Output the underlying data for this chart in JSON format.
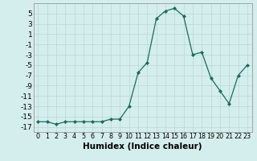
{
  "x": [
    0,
    1,
    2,
    3,
    4,
    5,
    6,
    7,
    8,
    9,
    10,
    11,
    12,
    13,
    14,
    15,
    16,
    17,
    18,
    19,
    20,
    21,
    22,
    23
  ],
  "y": [
    -16,
    -16,
    -16.5,
    -16,
    -16,
    -16,
    -16,
    -16,
    -15.5,
    -15.5,
    -13,
    -6.5,
    -4.5,
    4,
    5.5,
    6,
    4.5,
    -3,
    -2.5,
    -7.5,
    -10,
    -12.5,
    -7,
    -5
  ],
  "line_color": "#1a6b5a",
  "marker": "D",
  "marker_size": 2.0,
  "bg_color": "#d4eeed",
  "grid_color": "#b8d8d4",
  "xlabel": "Humidex (Indice chaleur)",
  "xlim": [
    -0.5,
    23.5
  ],
  "ylim": [
    -18,
    7
  ],
  "yticks": [
    5,
    3,
    1,
    -1,
    -3,
    -5,
    -7,
    -9,
    -11,
    -13,
    -15,
    -17
  ],
  "xtick_labels": [
    "0",
    "1",
    "2",
    "3",
    "4",
    "5",
    "6",
    "7",
    "8",
    "9",
    "10",
    "11",
    "12",
    "13",
    "14",
    "15",
    "16",
    "17",
    "18",
    "19",
    "20",
    "21",
    "22",
    "23"
  ],
  "xlabel_fontsize": 7.5,
  "ytick_fontsize": 6.5,
  "xtick_fontsize": 5.8
}
